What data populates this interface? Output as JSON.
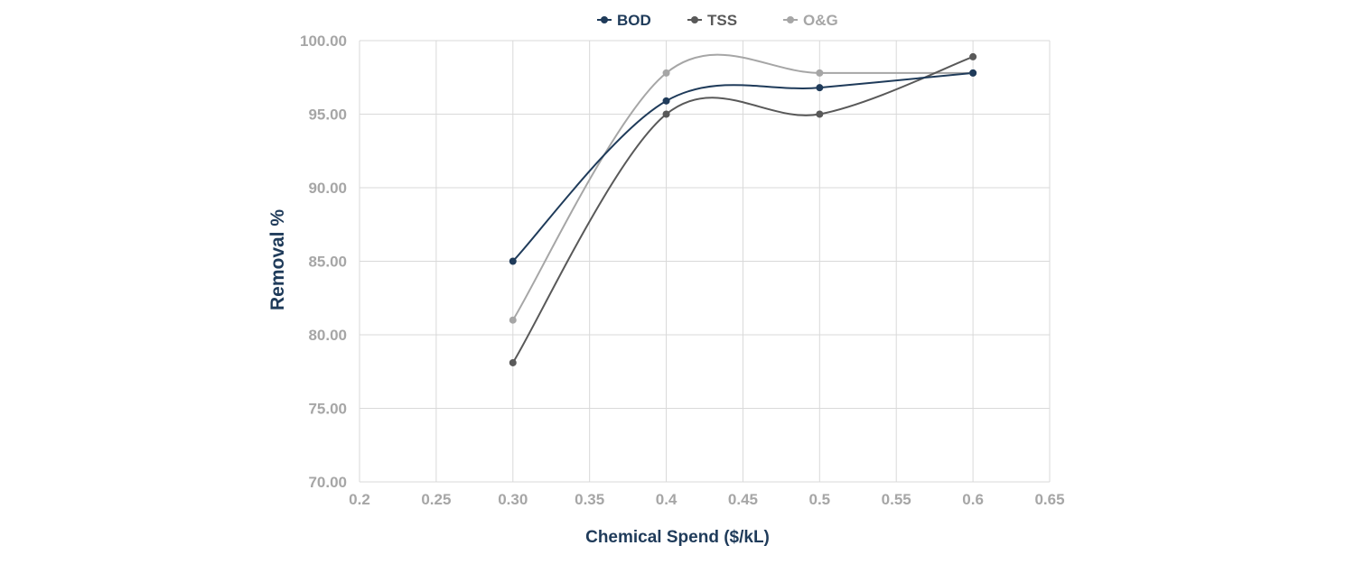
{
  "chart_data": {
    "type": "scatter",
    "title": "",
    "xlabel": "Chemical Spend ($/kL)",
    "ylabel": "Removal %",
    "xlim": [
      0.2,
      0.65
    ],
    "ylim": [
      70,
      100
    ],
    "x_ticks": [
      "0.2",
      "0.25",
      "0.30",
      "0.35",
      "0.4",
      "0.45",
      "0.5",
      "0.55",
      "0.6",
      "0.65"
    ],
    "y_ticks": [
      "70.00",
      "75.00",
      "80.00",
      "85.00",
      "90.00",
      "95.00",
      "100.00"
    ],
    "grid": true,
    "legend_position": "top",
    "smooth_lines": true,
    "series": [
      {
        "name": "BOD",
        "color": "#1f3b5a",
        "x": [
          0.3,
          0.4,
          0.5,
          0.6
        ],
        "y": [
          85.0,
          95.9,
          96.8,
          97.8
        ]
      },
      {
        "name": "TSS",
        "color": "#595959",
        "x": [
          0.3,
          0.4,
          0.5,
          0.6
        ],
        "y": [
          78.1,
          95.0,
          95.0,
          98.9
        ]
      },
      {
        "name": "O&G",
        "color": "#a6a6a6",
        "x": [
          0.3,
          0.4,
          0.5,
          0.6
        ],
        "y": [
          81.0,
          97.8,
          97.8,
          97.8
        ]
      }
    ]
  }
}
